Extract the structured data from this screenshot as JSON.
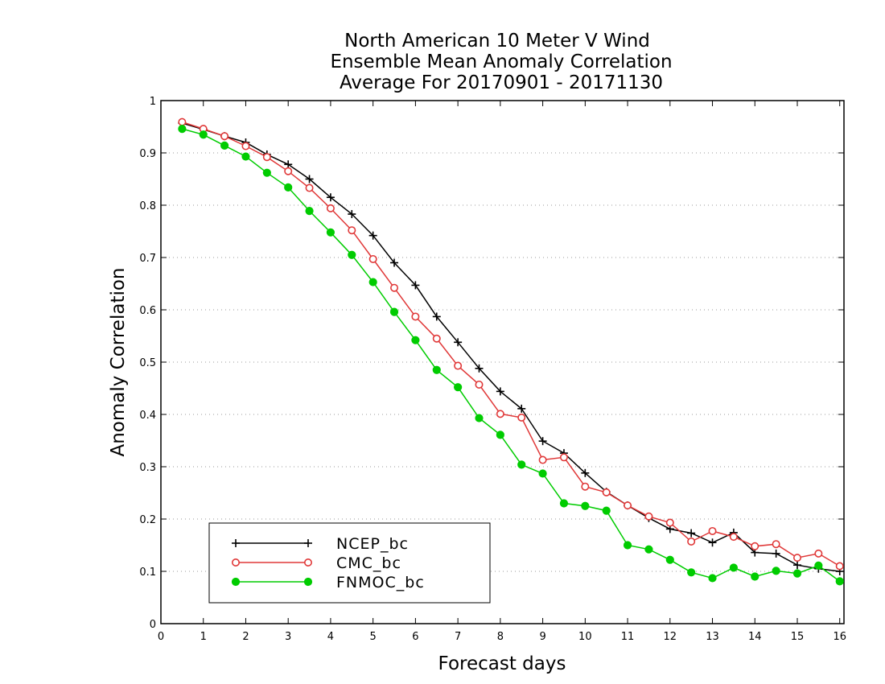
{
  "chart_data": {
    "type": "line",
    "title": [
      "North American 10 Meter V Wind",
      "Ensemble Mean Anomaly Correlation",
      "Average For 20170901 - 20171130"
    ],
    "xlabel": "Forecast days",
    "ylabel": "Anomaly Correlation",
    "xlim": [
      0,
      16.1
    ],
    "ylim": [
      0,
      1
    ],
    "xticks": [
      "0",
      "1",
      "2",
      "3",
      "4",
      "5",
      "6",
      "7",
      "8",
      "9",
      "10",
      "11",
      "12",
      "13",
      "14",
      "15",
      "16"
    ],
    "yticks": [
      "0",
      "0.1",
      "0.2",
      "0.3",
      "0.4",
      "0.5",
      "0.6",
      "0.7",
      "0.8",
      "0.9",
      "1"
    ],
    "grid": "horizontal dotted",
    "legend_placement": "bottom-left",
    "x": [
      0.5,
      1,
      1.5,
      2,
      2.5,
      3,
      3.5,
      4,
      4.5,
      5,
      5.5,
      6,
      6.5,
      7,
      7.5,
      8,
      8.5,
      9,
      9.5,
      10,
      10.5,
      11,
      11.5,
      12,
      12.5,
      13,
      13.5,
      14,
      14.5,
      15,
      15.5,
      16
    ],
    "series": [
      {
        "name": "NCEP_bc",
        "color": "#000000",
        "marker": "plus",
        "values": [
          0.957,
          0.945,
          0.932,
          0.92,
          0.897,
          0.878,
          0.85,
          0.815,
          0.783,
          0.742,
          0.69,
          0.647,
          0.587,
          0.538,
          0.488,
          0.444,
          0.411,
          0.349,
          0.326,
          0.288,
          0.252,
          0.226,
          0.202,
          0.181,
          0.173,
          0.155,
          0.174,
          0.136,
          0.134,
          0.112,
          0.105,
          0.1
        ]
      },
      {
        "name": "CMC_bc",
        "color": "#e03838",
        "marker": "open-circle",
        "values": [
          0.959,
          0.946,
          0.932,
          0.913,
          0.892,
          0.865,
          0.833,
          0.794,
          0.752,
          0.697,
          0.642,
          0.587,
          0.545,
          0.493,
          0.457,
          0.401,
          0.394,
          0.313,
          0.318,
          0.262,
          0.251,
          0.226,
          0.205,
          0.193,
          0.157,
          0.177,
          0.166,
          0.148,
          0.152,
          0.126,
          0.134,
          0.11
        ]
      },
      {
        "name": "FNMOC_bc",
        "color": "#00cc00",
        "marker": "filled-circle",
        "values": [
          0.946,
          0.935,
          0.914,
          0.893,
          0.862,
          0.834,
          0.789,
          0.748,
          0.705,
          0.653,
          0.596,
          0.542,
          0.485,
          0.452,
          0.393,
          0.361,
          0.304,
          0.287,
          0.23,
          0.225,
          0.216,
          0.15,
          0.142,
          0.122,
          0.098,
          0.087,
          0.107,
          0.09,
          0.101,
          0.096,
          0.111,
          0.081
        ]
      }
    ]
  }
}
